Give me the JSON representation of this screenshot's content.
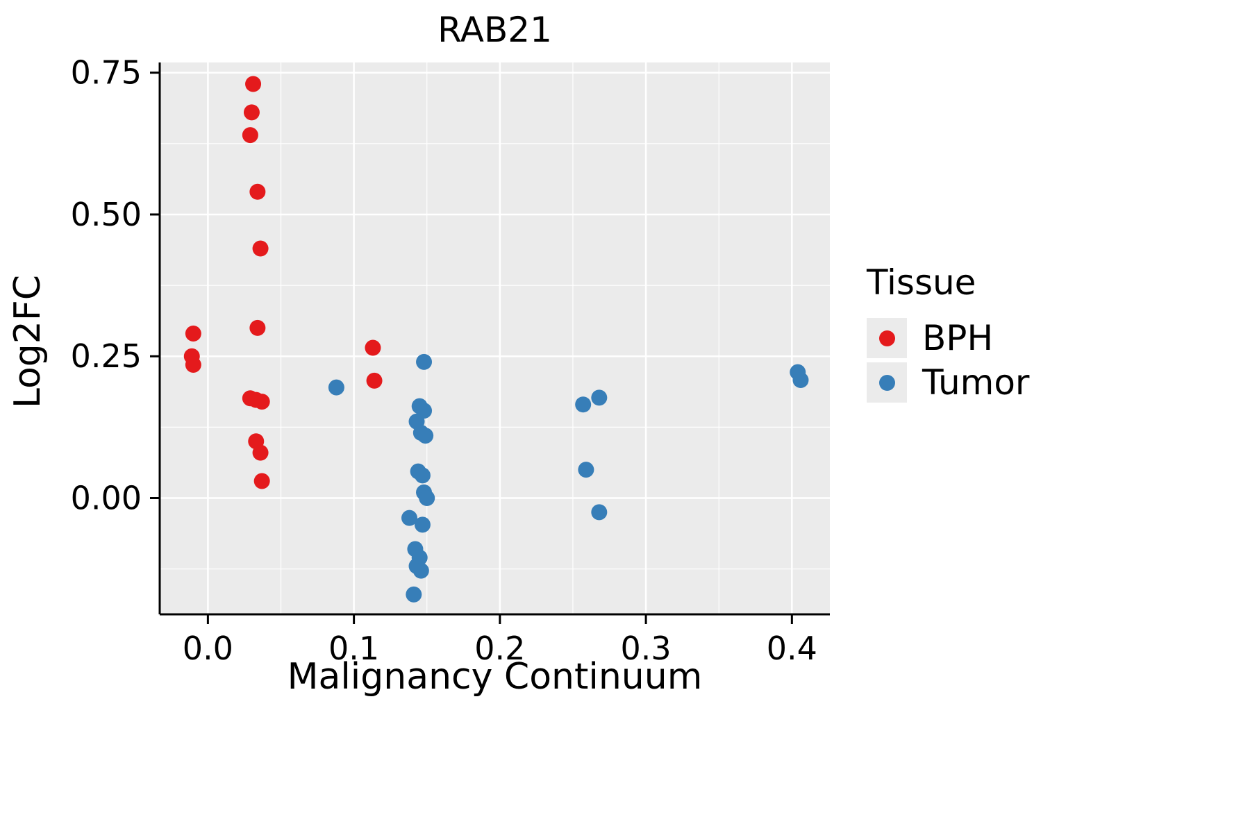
{
  "chart_data": {
    "type": "scatter",
    "title": "RAB21",
    "xlabel": "Malignancy Continuum",
    "ylabel": "Log2FC",
    "xlim": [
      -0.033,
      0.426
    ],
    "ylim": [
      -0.205,
      0.768
    ],
    "x_ticks": [
      0.0,
      0.1,
      0.2,
      0.3,
      0.4
    ],
    "x_tick_labels": [
      "0.0",
      "0.1",
      "0.2",
      "0.3",
      "0.4"
    ],
    "y_ticks": [
      0.0,
      0.25,
      0.5,
      0.75
    ],
    "y_tick_labels": [
      "0.00",
      "0.25",
      "0.50",
      "0.75"
    ],
    "grid": true,
    "legend_position": "right",
    "legend_title": "Tissue",
    "panel_bg": "#EBEBEB",
    "grid_color": "#FFFFFF",
    "axis_color": "#000000",
    "series": [
      {
        "name": "BPH",
        "color": "#E41A1C",
        "points": [
          [
            -0.01,
            0.29
          ],
          [
            -0.011,
            0.25
          ],
          [
            -0.01,
            0.235
          ],
          [
            0.031,
            0.73
          ],
          [
            0.03,
            0.68
          ],
          [
            0.029,
            0.64
          ],
          [
            0.034,
            0.54
          ],
          [
            0.036,
            0.44
          ],
          [
            0.034,
            0.3
          ],
          [
            0.029,
            0.176
          ],
          [
            0.033,
            0.173
          ],
          [
            0.037,
            0.17
          ],
          [
            0.033,
            0.1
          ],
          [
            0.036,
            0.08
          ],
          [
            0.037,
            0.03
          ],
          [
            0.113,
            0.265
          ],
          [
            0.114,
            0.207
          ]
        ]
      },
      {
        "name": "Tumor",
        "color": "#377EB8",
        "points": [
          [
            0.088,
            0.195
          ],
          [
            0.148,
            0.24
          ],
          [
            0.145,
            0.162
          ],
          [
            0.148,
            0.154
          ],
          [
            0.143,
            0.135
          ],
          [
            0.146,
            0.115
          ],
          [
            0.149,
            0.11
          ],
          [
            0.144,
            0.047
          ],
          [
            0.147,
            0.04
          ],
          [
            0.148,
            0.01
          ],
          [
            0.15,
            0.0
          ],
          [
            0.138,
            -0.035
          ],
          [
            0.147,
            -0.047
          ],
          [
            0.142,
            -0.09
          ],
          [
            0.145,
            -0.105
          ],
          [
            0.143,
            -0.12
          ],
          [
            0.146,
            -0.128
          ],
          [
            0.141,
            -0.17
          ],
          [
            0.257,
            0.165
          ],
          [
            0.268,
            0.177
          ],
          [
            0.259,
            0.05
          ],
          [
            0.268,
            -0.025
          ],
          [
            0.404,
            0.222
          ],
          [
            0.406,
            0.208
          ]
        ]
      }
    ]
  }
}
